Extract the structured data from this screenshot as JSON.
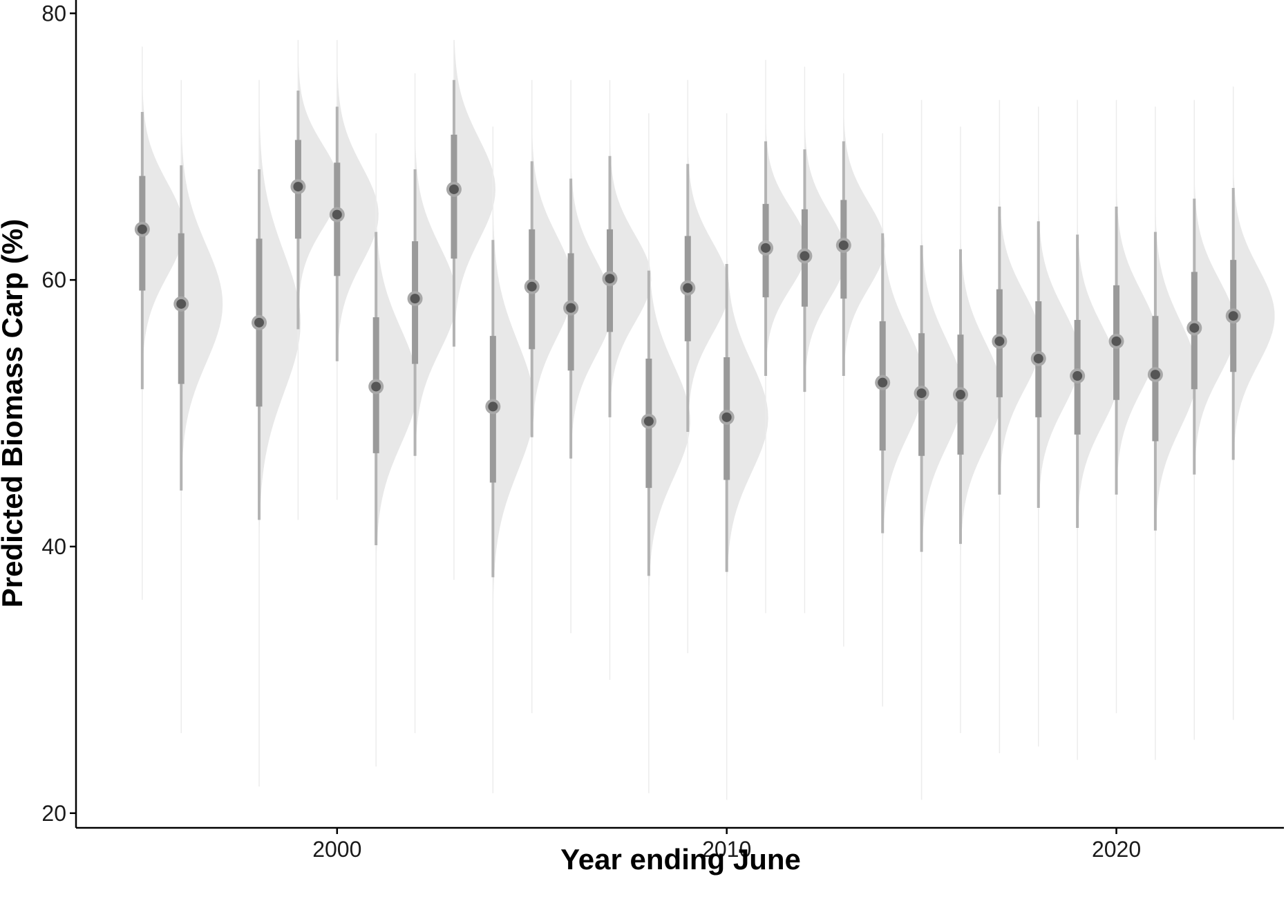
{
  "chart_data": {
    "type": "scatter",
    "subtype": "half-eye interval plot (posterior density with median point, 66% and 95% intervals)",
    "title": "",
    "xlabel": "Year ending June",
    "ylabel": "Predicted Biomass Carp (%)",
    "xlim": [
      1993.3,
      2024.3
    ],
    "ylim": [
      18.9,
      81
    ],
    "x_ticks": [
      2000,
      2010,
      2020
    ],
    "y_ticks": [
      20,
      40,
      60,
      80
    ],
    "grid": false,
    "legend": "none",
    "colors": {
      "density": "#e8e8e8",
      "interval": "#a9a9a9",
      "point": "#555555",
      "axis": "#000000"
    },
    "series": [
      {
        "points": [
          {
            "x": 1995,
            "median": 63.8,
            "q66": [
              59.2,
              67.8
            ],
            "q95": [
              51.8,
              72.6
            ],
            "range": [
              36,
              77.5
            ],
            "sd": 3.5
          },
          {
            "x": 1996,
            "median": 58.2,
            "q66": [
              52.2,
              63.5
            ],
            "q95": [
              44.2,
              68.6
            ],
            "range": [
              26,
              75
            ],
            "sd": 4.4
          },
          {
            "x": 1998,
            "median": 56.8,
            "q66": [
              50.5,
              63.1
            ],
            "q95": [
              42.0,
              68.3
            ],
            "range": [
              22,
              75
            ],
            "sd": 5.2
          },
          {
            "x": 1999,
            "median": 67.0,
            "q66": [
              63.1,
              70.5
            ],
            "q95": [
              56.3,
              74.2
            ],
            "range": [
              42,
              78
            ],
            "sd": 3.1
          },
          {
            "x": 2000,
            "median": 64.9,
            "q66": [
              60.3,
              68.8
            ],
            "q95": [
              53.9,
              73.0
            ],
            "range": [
              43.5,
              78
            ],
            "sd": 3.6
          },
          {
            "x": 2001,
            "median": 52.0,
            "q66": [
              47.0,
              57.2
            ],
            "q95": [
              40.1,
              63.6
            ],
            "range": [
              23.5,
              71
            ],
            "sd": 4.3
          },
          {
            "x": 2002,
            "median": 58.6,
            "q66": [
              53.7,
              62.9
            ],
            "q95": [
              46.8,
              68.3
            ],
            "range": [
              26,
              75.5
            ],
            "sd": 3.9
          },
          {
            "x": 2003,
            "median": 66.8,
            "q66": [
              61.6,
              70.9
            ],
            "q95": [
              55.0,
              75.0
            ],
            "range": [
              37.5,
              78
            ],
            "sd": 3.8
          },
          {
            "x": 2004,
            "median": 50.5,
            "q66": [
              44.8,
              55.8
            ],
            "q95": [
              37.7,
              63.0
            ],
            "range": [
              21.5,
              71.5
            ],
            "sd": 4.8
          },
          {
            "x": 2005,
            "median": 59.5,
            "q66": [
              54.8,
              63.8
            ],
            "q95": [
              48.2,
              68.9
            ],
            "range": [
              27.5,
              75
            ],
            "sd": 3.8
          },
          {
            "x": 2006,
            "median": 57.9,
            "q66": [
              53.2,
              62.0
            ],
            "q95": [
              46.6,
              67.6
            ],
            "range": [
              33.5,
              75
            ],
            "sd": 3.6
          },
          {
            "x": 2007,
            "median": 60.1,
            "q66": [
              56.1,
              63.8
            ],
            "q95": [
              49.7,
              69.3
            ],
            "range": [
              30,
              75
            ],
            "sd": 3.3
          },
          {
            "x": 2008,
            "median": 49.4,
            "q66": [
              44.4,
              54.1
            ],
            "q95": [
              37.8,
              60.7
            ],
            "range": [
              21.5,
              72.5
            ],
            "sd": 4.2
          },
          {
            "x": 2009,
            "median": 59.4,
            "q66": [
              55.4,
              63.3
            ],
            "q95": [
              48.6,
              68.7
            ],
            "range": [
              32,
              75
            ],
            "sd": 3.4
          },
          {
            "x": 2010,
            "median": 49.7,
            "q66": [
              45.0,
              54.2
            ],
            "q95": [
              38.1,
              61.2
            ],
            "range": [
              21,
              72.5
            ],
            "sd": 4.1
          },
          {
            "x": 2011,
            "median": 62.4,
            "q66": [
              58.7,
              65.7
            ],
            "q95": [
              52.8,
              70.4
            ],
            "range": [
              35,
              76.5
            ],
            "sd": 3.0
          },
          {
            "x": 2012,
            "median": 61.8,
            "q66": [
              58.0,
              65.3
            ],
            "q95": [
              51.6,
              69.8
            ],
            "range": [
              35,
              76
            ],
            "sd": 3.2
          },
          {
            "x": 2013,
            "median": 62.6,
            "q66": [
              58.6,
              66.0
            ],
            "q95": [
              52.8,
              70.4
            ],
            "range": [
              32.5,
              75.5
            ],
            "sd": 3.2
          },
          {
            "x": 2014,
            "median": 52.3,
            "q66": [
              47.2,
              56.9
            ],
            "q95": [
              41.0,
              63.5
            ],
            "range": [
              28,
              71
            ],
            "sd": 4.0
          },
          {
            "x": 2015,
            "median": 51.5,
            "q66": [
              46.8,
              56.0
            ],
            "q95": [
              39.6,
              62.6
            ],
            "range": [
              21,
              73.5
            ],
            "sd": 4.0
          },
          {
            "x": 2016,
            "median": 51.4,
            "q66": [
              46.9,
              55.9
            ],
            "q95": [
              40.2,
              62.3
            ],
            "range": [
              26,
              71.5
            ],
            "sd": 3.9
          },
          {
            "x": 2017,
            "median": 55.4,
            "q66": [
              51.2,
              59.3
            ],
            "q95": [
              43.9,
              65.5
            ],
            "range": [
              24.5,
              73.5
            ],
            "sd": 3.6
          },
          {
            "x": 2018,
            "median": 54.1,
            "q66": [
              49.7,
              58.4
            ],
            "q95": [
              42.9,
              64.4
            ],
            "range": [
              25,
              73
            ],
            "sd": 3.7
          },
          {
            "x": 2019,
            "median": 52.8,
            "q66": [
              48.4,
              57.0
            ],
            "q95": [
              41.4,
              63.4
            ],
            "range": [
              24,
              73.5
            ],
            "sd": 3.7
          },
          {
            "x": 2020,
            "median": 55.4,
            "q66": [
              51.0,
              59.6
            ],
            "q95": [
              43.9,
              65.5
            ],
            "range": [
              27.5,
              73.5
            ],
            "sd": 3.7
          },
          {
            "x": 2021,
            "median": 52.9,
            "q66": [
              47.9,
              57.3
            ],
            "q95": [
              41.2,
              63.6
            ],
            "range": [
              24,
              73
            ],
            "sd": 4.0
          },
          {
            "x": 2022,
            "median": 56.4,
            "q66": [
              51.8,
              60.6
            ],
            "q95": [
              45.4,
              66.1
            ],
            "range": [
              25.5,
              73.5
            ],
            "sd": 3.6
          },
          {
            "x": 2023,
            "median": 57.3,
            "q66": [
              53.1,
              61.5
            ],
            "q95": [
              46.5,
              66.9
            ],
            "range": [
              27,
              74.5
            ],
            "sd": 3.6
          }
        ]
      }
    ]
  }
}
